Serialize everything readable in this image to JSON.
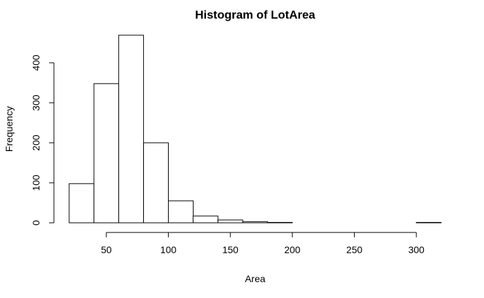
{
  "chart_data": {
    "type": "bar",
    "title": "Histogram of LotArea",
    "xlabel": "Area",
    "ylabel": "Frequency",
    "bin_edges": [
      20,
      40,
      60,
      80,
      100,
      120,
      140,
      160,
      180,
      200,
      220,
      240,
      260,
      280,
      300,
      320
    ],
    "values": [
      98,
      348,
      469,
      200,
      55,
      17,
      7,
      3,
      1,
      0,
      0,
      0,
      0,
      0,
      1
    ],
    "xlim": [
      20,
      320
    ],
    "ylim": [
      0,
      469
    ],
    "x_ticks": [
      50,
      100,
      150,
      200,
      250,
      300
    ],
    "y_ticks": [
      0,
      100,
      200,
      300,
      400
    ],
    "grid": false
  }
}
